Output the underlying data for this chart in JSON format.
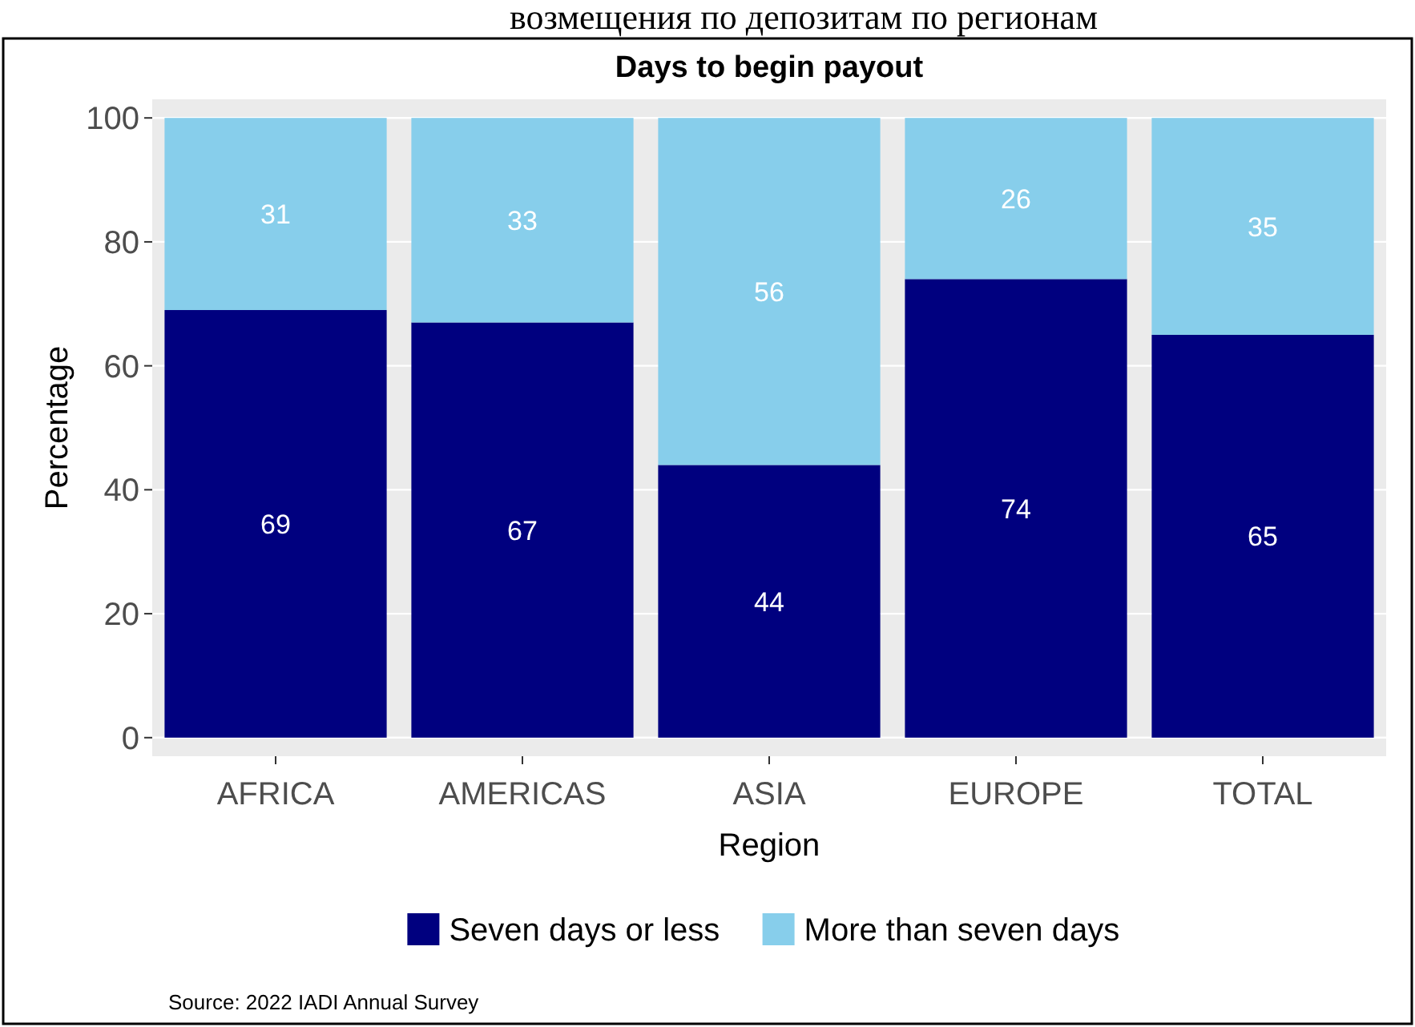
{
  "chart_data": {
    "type": "bar",
    "title": "Days to begin payout",
    "xlabel": "Region",
    "ylabel": "Percentage",
    "annotations": [
      "возмещения по депозитам по регионам",
      "Source: 2022 IADI Annual Survey"
    ],
    "categories": [
      "AFRICA",
      "AMERICAS",
      "ASIA",
      "EUROPE",
      "TOTAL"
    ],
    "series": [
      {
        "name": "Seven days or less",
        "color": "#00007f",
        "values": [
          69,
          67,
          44,
          74,
          65
        ]
      },
      {
        "name": "More than seven days",
        "color": "#87ceeb",
        "values": [
          31,
          33,
          56,
          26,
          35
        ]
      }
    ],
    "stacked": true,
    "data_labels": true,
    "ylim": [
      -3,
      103
    ],
    "yticks": [
      0,
      20,
      40,
      60,
      80,
      100
    ],
    "grid": "y",
    "legend": "bottom"
  }
}
